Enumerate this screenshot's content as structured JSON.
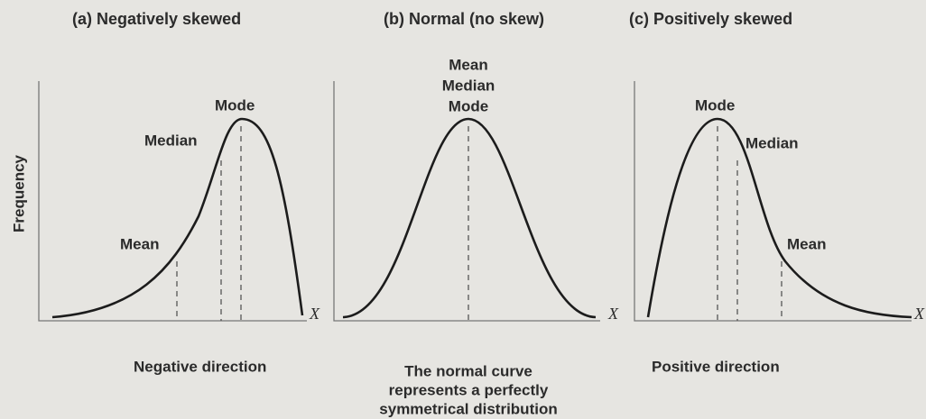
{
  "y_axis_label": "Frequency",
  "panels": [
    {
      "title": "(a) Negatively skewed",
      "labels": [
        "Mean",
        "Median",
        "Mode"
      ],
      "axis_label": "X",
      "caption": [
        "Negative direction"
      ]
    },
    {
      "title": "(b) Normal (no skew)",
      "labels": [
        "Mean",
        "Median",
        "Mode"
      ],
      "axis_label": "X",
      "caption": [
        "The normal curve",
        "represents a perfectly",
        "symmetrical distribution"
      ]
    },
    {
      "title": "(c) Positively skewed",
      "labels": [
        "Mode",
        "Median",
        "Mean"
      ],
      "axis_label": "X",
      "caption": [
        "Positive direction"
      ]
    }
  ]
}
